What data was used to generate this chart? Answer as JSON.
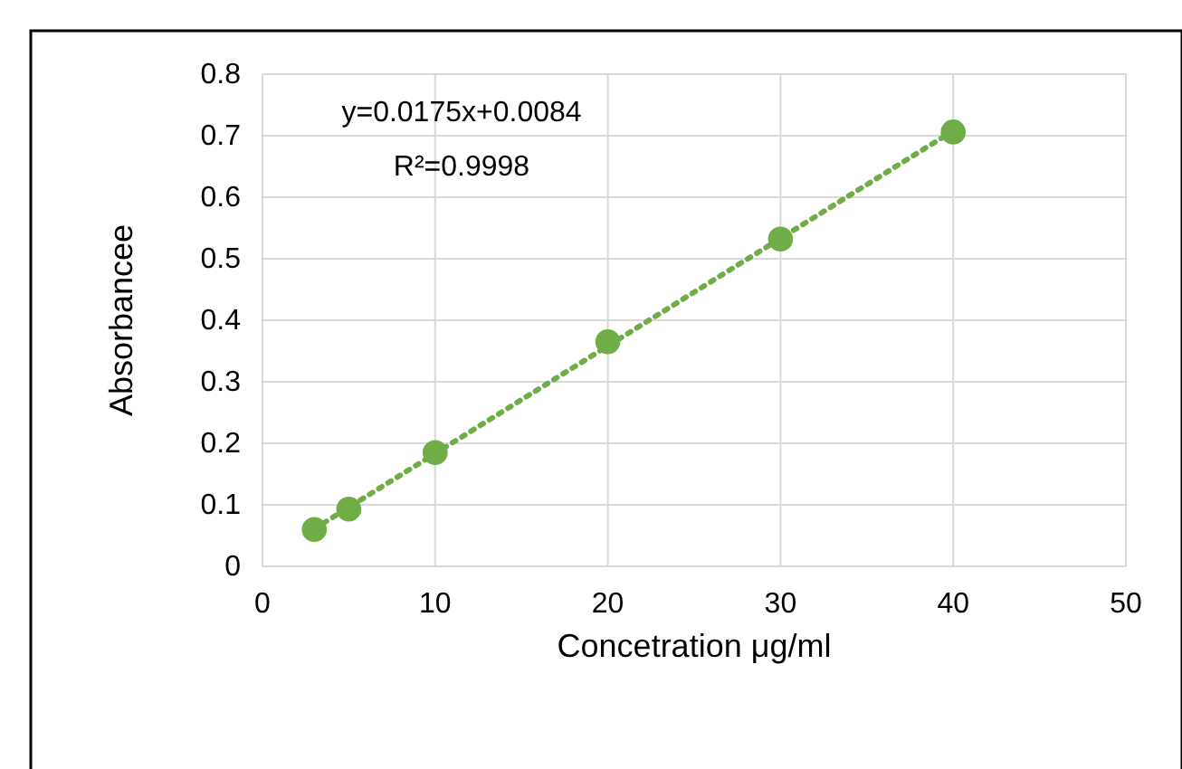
{
  "chart_data": {
    "type": "scatter",
    "xlabel": "Concetration μg/ml",
    "ylabel": "Absorbancee",
    "annotations": [
      "y=0.0175x+0.0084",
      "R²=0.9998"
    ],
    "series": [
      {
        "color": "#70ad47",
        "x": [
          3,
          5,
          10,
          20,
          30,
          40
        ],
        "values": [
          0.06,
          0.093,
          0.185,
          0.365,
          0.532,
          0.706
        ],
        "marker": "circle"
      },
      {
        "type": "line",
        "color": "#70ad47",
        "x": [
          3,
          40
        ],
        "values": [
          0.061,
          0.708
        ],
        "line_style": "dotted",
        "marker": "none"
      }
    ],
    "xlim": [
      0,
      50
    ],
    "xticks": [
      0,
      10,
      20,
      30,
      40,
      50
    ],
    "ylim": [
      0,
      0.8
    ],
    "yticks": [
      0,
      0.1,
      0.2,
      0.3,
      0.4,
      0.5,
      0.6,
      0.7,
      0.8
    ],
    "grid": true
  }
}
